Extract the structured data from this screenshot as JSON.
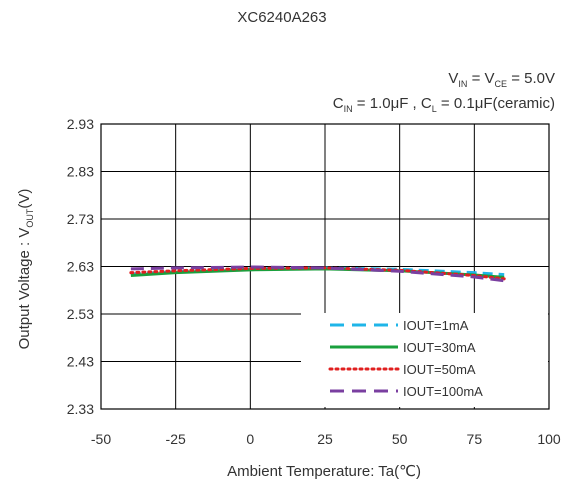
{
  "chart_data": {
    "type": "line",
    "title": "XC6240A263",
    "conditions": {
      "line1": {
        "v1_main": "V",
        "v1_sub": "IN",
        "middle": " = V",
        "v2_sub": "CE",
        "value": " = 5.0V"
      },
      "line2": {
        "c1_main": "C",
        "c1_sub": "IN",
        "c1_value": " = 1.0μF , C",
        "c2_sub": "L",
        "c2_value": " = 0.1μF(ceramic)"
      }
    },
    "xlabel": "Ambient Temperature: Ta(℃)",
    "ylabel": {
      "main": "Output Voltage : V",
      "sub": "OUT",
      "tail": "(V)"
    },
    "xlim": [
      -50,
      100
    ],
    "ylim": [
      2.33,
      2.93
    ],
    "x_ticks": [
      "-50",
      "-25",
      "0",
      "25",
      "50",
      "75",
      "100"
    ],
    "y_ticks": [
      "2.93",
      "2.83",
      "2.73",
      "2.63",
      "2.53",
      "2.43",
      "2.33"
    ],
    "grid": true,
    "legend_position": "bottom-right",
    "x": [
      -40,
      -25,
      0,
      25,
      50,
      75,
      85
    ],
    "series": [
      {
        "name": "IOUT=1mA",
        "color": "#1fb5e8",
        "dash": "dashed",
        "values": [
          2.614,
          2.619,
          2.625,
          2.627,
          2.624,
          2.617,
          2.613
        ]
      },
      {
        "name": "IOUT=30mA",
        "color": "#1aa03d",
        "dash": "solid",
        "values": [
          2.611,
          2.617,
          2.623,
          2.625,
          2.621,
          2.612,
          2.607
        ]
      },
      {
        "name": "IOUT=50mA",
        "color": "#e02020",
        "dash": "dotted",
        "values": [
          2.617,
          2.621,
          2.626,
          2.627,
          2.622,
          2.611,
          2.604
        ]
      },
      {
        "name": "IOUT=100mA",
        "color": "#7a3fa0",
        "dash": "longdash",
        "values": [
          2.625,
          2.627,
          2.629,
          2.627,
          2.62,
          2.608,
          2.6
        ]
      }
    ]
  }
}
